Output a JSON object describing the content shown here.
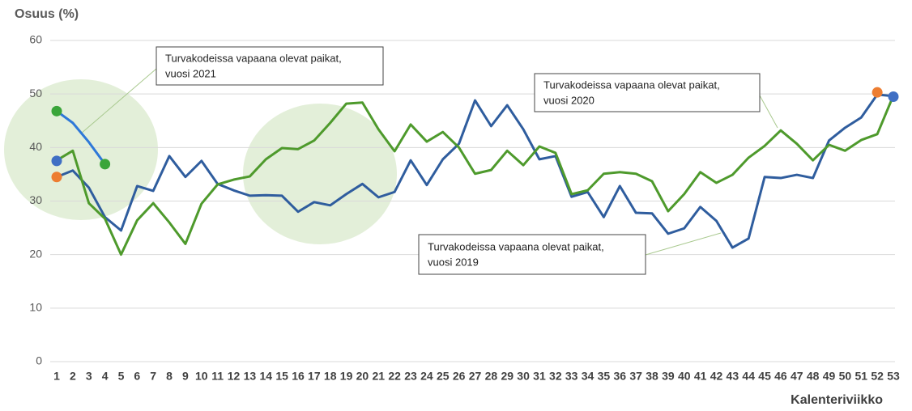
{
  "chart_data": {
    "type": "line",
    "y_label": "Osuus (%)",
    "x_label": "Kalenteriviikko",
    "x": [
      1,
      2,
      3,
      4,
      5,
      6,
      7,
      8,
      9,
      10,
      11,
      12,
      13,
      14,
      15,
      16,
      17,
      18,
      19,
      20,
      21,
      22,
      23,
      24,
      25,
      26,
      27,
      28,
      29,
      30,
      31,
      32,
      33,
      34,
      35,
      36,
      37,
      38,
      39,
      40,
      41,
      42,
      43,
      44,
      45,
      46,
      47,
      48,
      49,
      50,
      51,
      52,
      53
    ],
    "xlim": [
      1,
      53
    ],
    "ylim": [
      0,
      60
    ],
    "yticks": [
      0,
      10,
      20,
      30,
      40,
      50,
      60
    ],
    "grid": true,
    "series": [
      {
        "color": "#2f5d9e",
        "values": [
          34.5,
          35.7,
          32.5,
          27,
          24.5,
          32.8,
          31.9,
          38.4,
          34.5,
          37.5,
          33.2,
          32,
          31,
          31.1,
          31,
          28,
          29.8,
          29.2,
          31.3,
          33.2,
          30.7,
          31.7,
          37.6,
          33,
          37.8,
          40.7,
          48.8,
          44,
          47.9,
          43.4,
          37.8,
          38.4,
          30.8,
          31.7,
          27,
          32.8,
          27.8,
          27.7,
          23.9,
          24.9,
          28.9,
          26.3,
          21.3,
          23,
          34.5,
          34.3,
          34.9,
          34.3,
          41.3,
          43.7,
          45.6,
          49.9,
          49.6
        ]
      },
      {
        "color": "#4e9a2c",
        "values": [
          37.6,
          39.4,
          29.6,
          26.7,
          20,
          26.4,
          29.6,
          26,
          22,
          29.5,
          33.1,
          34,
          34.6,
          37.8,
          39.9,
          39.7,
          41.3,
          44.6,
          48.2,
          48.4,
          43.4,
          39.3,
          44.3,
          41.1,
          42.9,
          40,
          35.1,
          35.8,
          39.4,
          36.7,
          40.2,
          39,
          31.3,
          32,
          35.1,
          35.4,
          35.1,
          33.7,
          28.1,
          31.3,
          35.4,
          33.4,
          34.9,
          38.1,
          40.3,
          43.2,
          40.7,
          37.6,
          40.5,
          39.4,
          41.4,
          42.5,
          49.7
        ]
      },
      {
        "color": "#2e78d8",
        "values": [
          46.8,
          44.6,
          41,
          36.9,
          null,
          null,
          null,
          null,
          null,
          null,
          null,
          null,
          null,
          null,
          null,
          null,
          null,
          null,
          null,
          null,
          null,
          null,
          null,
          null,
          null,
          null,
          null,
          null,
          null,
          null,
          null,
          null,
          null,
          null,
          null,
          null,
          null,
          null,
          null,
          null,
          null,
          null,
          null,
          null,
          null,
          null,
          null,
          null,
          null,
          null,
          null,
          null,
          null
        ]
      }
    ],
    "points": [
      {
        "x": 1,
        "value": 46.8,
        "color": "#3aa53a"
      },
      {
        "x": 4,
        "value": 36.9,
        "color": "#3aa53a"
      },
      {
        "x": 1,
        "value": 37.5,
        "color": "#3f6fc4"
      },
      {
        "x": 1,
        "value": 34.5,
        "color": "#ed7d31"
      },
      {
        "x": 52,
        "value": 50.3,
        "color": "#ed7d31"
      },
      {
        "x": 53,
        "value": 49.5,
        "color": "#3f6fc4"
      }
    ],
    "annotations": [
      {
        "lines": [
          "Turvakodeissa vapaana olevat paikat,",
          "vuosi 2021"
        ]
      },
      {
        "lines": [
          "Turvakodeissa vapaana olevat paikat,",
          "vuosi 2020"
        ]
      },
      {
        "lines": [
          "Turvakodeissa vapaana olevat paikat,",
          "vuosi 2019"
        ]
      }
    ]
  }
}
